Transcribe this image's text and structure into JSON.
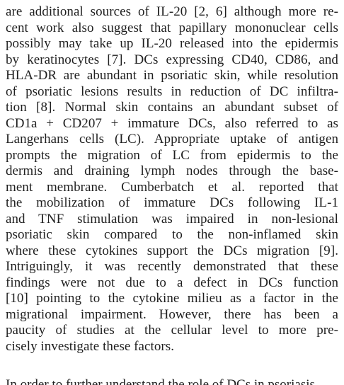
{
  "paragraph": {
    "lines": [
      "are additional sources of IL-20 [2, 6] although more re-",
      "cent work also suggest that papillary mononuclear cells",
      "possibly may take up IL-20 released into the epidermis",
      "by keratinocytes [7]. DCs expressing CD40, CD86, and",
      "HLA-DR are abundant in psoriatic skin, while resolution",
      "of psoriatic lesions results in reduction of DC infiltra-",
      "tion [8]. Normal skin contains an abundant subset of",
      "CD1a + CD207 + immature DCs, also referred to as",
      "Langerhans cells (LC). Appropriate uptake of antigen",
      "prompts the migration of LC from epidermis to the",
      "dermis and draining lymph nodes through the base-",
      "ment membrane. Cumberbatch et al. reported that",
      "the mobilization of immature DCs following IL-1",
      "and TNF  stimulation was impaired in non-lesional",
      "psoriatic skin compared to the non-inflamed skin",
      "where these cytokines support the DCs migration [9].",
      "Intriguingly, it was recently demonstrated that these",
      "findings were not due to a defect in DCs function",
      "[10] pointing to the cytokine milieu as a factor in the",
      "migrational impairment. However, there has been a",
      "paucity of studies at the cellular level to more pre-",
      "cisely investigate these factors."
    ],
    "cut_line": "In order to further understand the role of DCs in psoriasis"
  }
}
